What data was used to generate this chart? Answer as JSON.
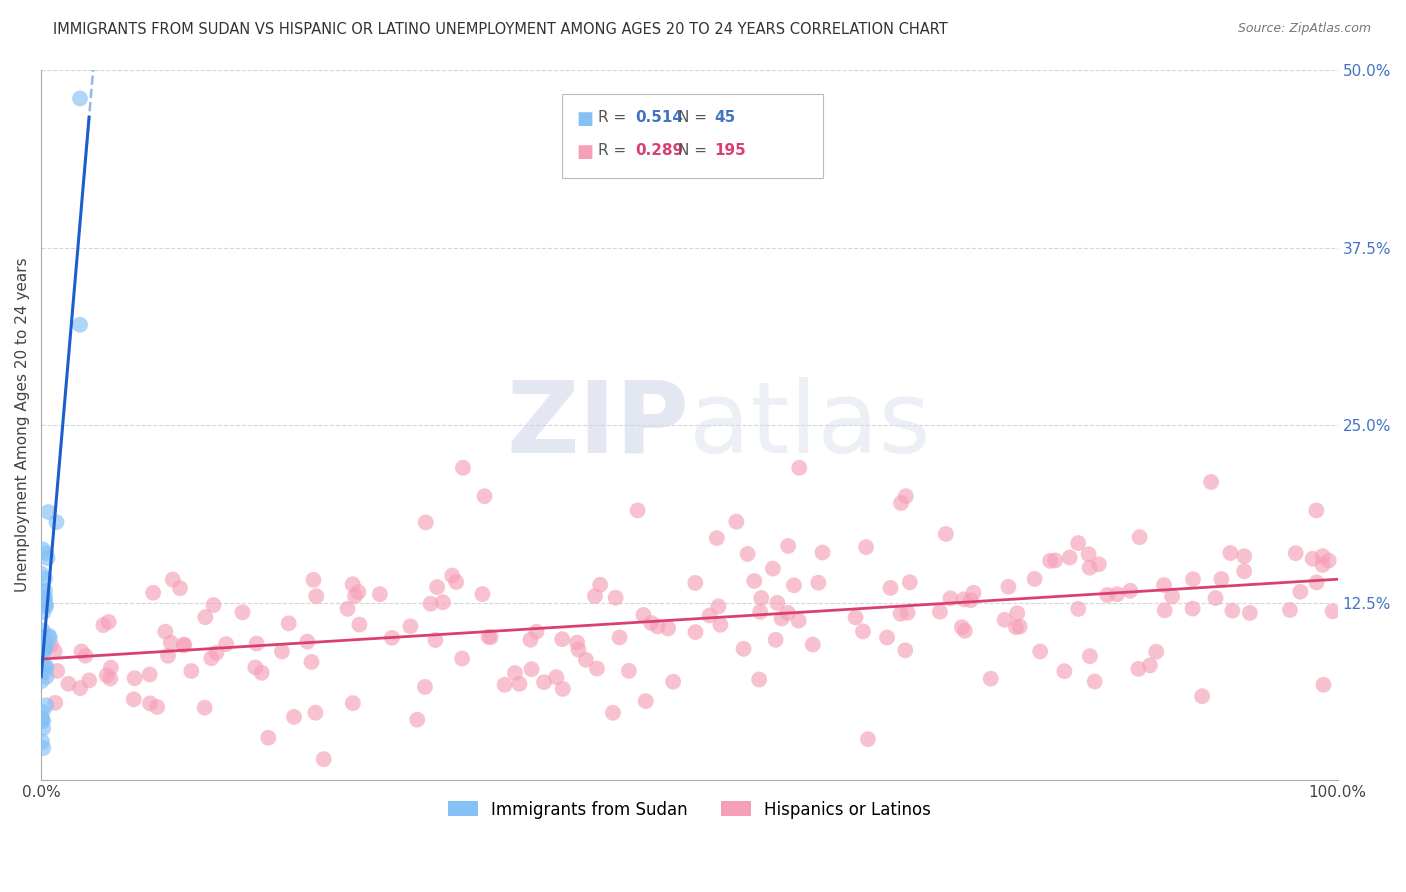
{
  "title": "IMMIGRANTS FROM SUDAN VS HISPANIC OR LATINO UNEMPLOYMENT AMONG AGES 20 TO 24 YEARS CORRELATION CHART",
  "source": "Source: ZipAtlas.com",
  "ylabel": "Unemployment Among Ages 20 to 24 years",
  "xlim": [
    0,
    1.0
  ],
  "ylim": [
    0,
    0.5
  ],
  "ytick_vals": [
    0.0,
    0.125,
    0.25,
    0.375,
    0.5
  ],
  "ytick_labels": [
    "",
    "12.5%",
    "25.0%",
    "37.5%",
    "50.0%"
  ],
  "xtick_vals": [
    0.0,
    0.25,
    0.5,
    0.75,
    1.0
  ],
  "xtick_labels": [
    "0.0%",
    "",
    "",
    "",
    "100.0%"
  ],
  "legend1_label": "Immigrants from Sudan",
  "legend2_label": "Hispanics or Latinos",
  "R1": "0.514",
  "N1": "45",
  "R2": "0.289",
  "N2": "195",
  "color_blue": "#85c1f5",
  "color_pink": "#f5a0b8",
  "color_blue_line": "#1a5fcc",
  "color_pink_line": "#d94070",
  "color_blue_text": "#4472c4",
  "color_pink_text": "#d94070",
  "background_color": "#ffffff",
  "grid_color": "#cccccc",
  "watermark_zip_color": "#d0d8e8",
  "watermark_atlas_color": "#c8d0e0",
  "title_fontsize": 10.5,
  "tick_fontsize": 11,
  "legend_fontsize": 11,
  "source_fontsize": 9
}
